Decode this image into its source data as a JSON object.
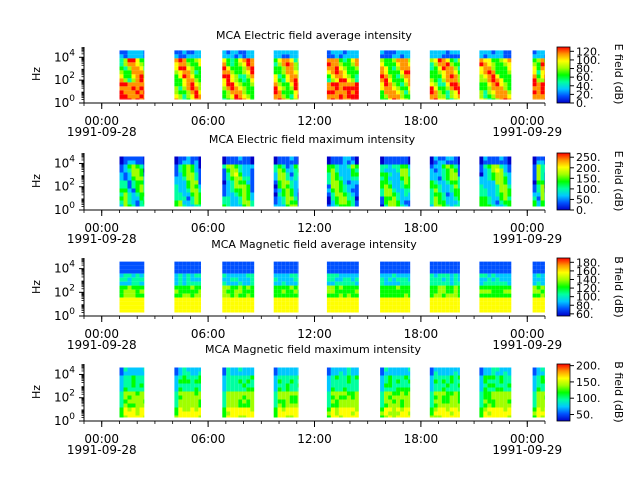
{
  "chart_data": [
    {
      "type": "heatmap",
      "title": "MCA  Electric field average intensity",
      "ylabel": "Hz",
      "colorbar_label": "E field (dB)",
      "colorbar_ticks": [
        "0.",
        "20.",
        "40.",
        "60.",
        "80.",
        "100.",
        "120."
      ],
      "colorbar_range": [
        0,
        130
      ],
      "y_ticks": [
        {
          "base": "10",
          "exp": "0"
        },
        {
          "base": "10",
          "exp": "2"
        },
        {
          "base": "10",
          "exp": "4"
        }
      ],
      "x_ticks": [
        {
          "time": "00:00",
          "date": "1991-09-28"
        },
        {
          "time": "06:00",
          "date": ""
        },
        {
          "time": "12:00",
          "date": ""
        },
        {
          "time": "18:00",
          "date": ""
        },
        {
          "time": "00:00",
          "date": "1991-09-29"
        }
      ],
      "style": "eavg"
    },
    {
      "type": "heatmap",
      "title": "MCA  Electric field maximum intensity",
      "ylabel": "Hz",
      "colorbar_label": "E field (dB)",
      "colorbar_ticks": [
        "0.",
        "50.",
        "100.",
        "150.",
        "200.",
        "250."
      ],
      "colorbar_range": [
        0,
        270
      ],
      "y_ticks": [
        {
          "base": "10",
          "exp": "0"
        },
        {
          "base": "10",
          "exp": "2"
        },
        {
          "base": "10",
          "exp": "4"
        }
      ],
      "x_ticks": [
        {
          "time": "00:00",
          "date": "1991-09-28"
        },
        {
          "time": "06:00",
          "date": ""
        },
        {
          "time": "12:00",
          "date": ""
        },
        {
          "time": "18:00",
          "date": ""
        },
        {
          "time": "00:00",
          "date": "1991-09-29"
        }
      ],
      "style": "emax"
    },
    {
      "type": "heatmap",
      "title": "MCA  Magnetic field average intensity",
      "ylabel": "Hz",
      "colorbar_label": "B field (dB)",
      "colorbar_ticks": [
        "60.",
        "80.",
        "100.",
        "120.",
        "140.",
        "160.",
        "180."
      ],
      "colorbar_range": [
        55,
        190
      ],
      "y_ticks": [
        {
          "base": "10",
          "exp": "0"
        },
        {
          "base": "10",
          "exp": "2"
        },
        {
          "base": "10",
          "exp": "4"
        }
      ],
      "x_ticks": [
        {
          "time": "00:00",
          "date": "1991-09-28"
        },
        {
          "time": "06:00",
          "date": ""
        },
        {
          "time": "12:00",
          "date": ""
        },
        {
          "time": "18:00",
          "date": ""
        },
        {
          "time": "00:00",
          "date": "1991-09-29"
        }
      ],
      "style": "bavg"
    },
    {
      "type": "heatmap",
      "title": "MCA  Magnetic field maximum intensity",
      "ylabel": "Hz",
      "colorbar_label": "B field (dB)",
      "colorbar_ticks": [
        "50.",
        "100.",
        "150.",
        "200."
      ],
      "colorbar_range": [
        30,
        205
      ],
      "y_ticks": [
        {
          "base": "10",
          "exp": "0"
        },
        {
          "base": "10",
          "exp": "2"
        },
        {
          "base": "10",
          "exp": "4"
        }
      ],
      "x_ticks": [
        {
          "time": "00:00",
          "date": "1991-09-28"
        },
        {
          "time": "06:00",
          "date": ""
        },
        {
          "time": "12:00",
          "date": ""
        },
        {
          "time": "18:00",
          "date": ""
        },
        {
          "time": "00:00",
          "date": "1991-09-29"
        }
      ],
      "style": "bmax"
    }
  ],
  "time_axis": {
    "start_hour": -1,
    "end_hour": 25,
    "major_tick_hours": [
      0,
      6,
      12,
      18,
      24
    ],
    "minor_step_hours": 1
  },
  "freq_axis": {
    "log10_min": 0,
    "log10_max": 4.9
  },
  "data_blocks_hours": [
    [
      1.0,
      2.4
    ],
    [
      4.1,
      5.6
    ],
    [
      6.8,
      8.6
    ],
    [
      9.7,
      11.1
    ],
    [
      12.7,
      14.5
    ],
    [
      15.7,
      17.4
    ],
    [
      18.5,
      20.2
    ],
    [
      21.3,
      23.1
    ],
    [
      24.3,
      25.0
    ]
  ],
  "colormap": [
    "#0000c8",
    "#0050ff",
    "#00c8ff",
    "#00ffa0",
    "#00ff00",
    "#a0ff00",
    "#ffff00",
    "#ff9600",
    "#ff0000"
  ]
}
